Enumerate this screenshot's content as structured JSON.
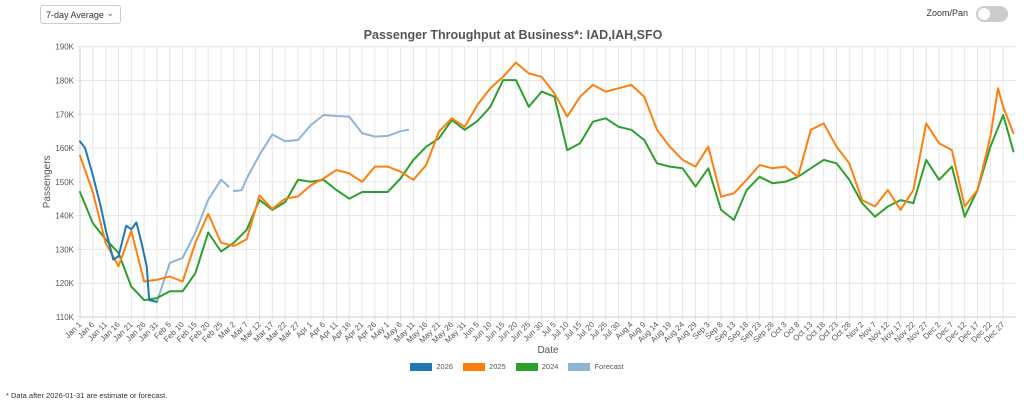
{
  "controls": {
    "average_select": "7-day Average",
    "zoom_pan_label": "Zoom/Pan",
    "zoom_pan_on": false
  },
  "footnote": "* Data after 2026-01-31 are estimate or forecast.",
  "chart_data": {
    "type": "line",
    "title": "Passenger Throughput at Business*: IAD,IAH,SFO",
    "xlabel": "Date",
    "ylabel": "Passengers",
    "ylim": [
      110000,
      190000
    ],
    "y_ticks": [
      "110K",
      "120K",
      "130K",
      "140K",
      "150K",
      "160K",
      "170K",
      "180K",
      "190K"
    ],
    "x_ticks": [
      "Jan 1",
      "Jan 6",
      "Jan 11",
      "Jan 16",
      "Jan 21",
      "Jan 26",
      "Jan 31",
      "Feb 5",
      "Feb 10",
      "Feb 15",
      "Feb 20",
      "Feb 25",
      "Mar 2",
      "Mar 7",
      "Mar 12",
      "Mar 17",
      "Mar 22",
      "Mar 27",
      "Apr 1",
      "Apr 6",
      "Apr 11",
      "Apr 16",
      "Apr 21",
      "Apr 26",
      "May 1",
      "May 6",
      "May 11",
      "May 16",
      "May 21",
      "May 26",
      "May 31",
      "Jun 5",
      "Jun 10",
      "Jun 15",
      "Jun 20",
      "Jun 25",
      "Jun 30",
      "Jul 5",
      "Jul 10",
      "Jul 15",
      "Jul 20",
      "Jul 25",
      "Jul 30",
      "Aug 4",
      "Aug 9",
      "Aug 14",
      "Aug 19",
      "Aug 24",
      "Aug 29",
      "Sep 3",
      "Sep 8",
      "Sep 13",
      "Sep 18",
      "Sep 23",
      "Sep 28",
      "Oct 3",
      "Oct 8",
      "Oct 13",
      "Oct 18",
      "Oct 23",
      "Oct 28",
      "Nov 2",
      "Nov 7",
      "Nov 12",
      "Nov 17",
      "Nov 22",
      "Nov 27",
      "Dec 2",
      "Dec 7",
      "Dec 12",
      "Dec 17",
      "Dec 22",
      "Dec 27"
    ],
    "grid": true,
    "legend_position": "bottom",
    "series": [
      {
        "name": "2026",
        "color": "#1f77b4",
        "points": [
          [
            "Jan 1",
            162000
          ],
          [
            "Jan 3",
            160000
          ],
          [
            "Jan 6",
            152000
          ],
          [
            "Jan 9",
            143000
          ],
          [
            "Jan 11",
            136000
          ],
          [
            "Jan 14",
            127000
          ],
          [
            "Jan 16",
            128000
          ],
          [
            "Jan 19",
            137000
          ],
          [
            "Jan 21",
            136000
          ],
          [
            "Jan 23",
            138000
          ],
          [
            "Jan 25",
            132000
          ],
          [
            "Jan 27",
            125000
          ],
          [
            "Jan 28",
            115000
          ],
          [
            "Jan 31",
            114500
          ]
        ]
      },
      {
        "name": "2025",
        "color": "#ff7f0e",
        "points": [
          [
            "Jan 1",
            157700
          ],
          [
            "Jan 6",
            147000
          ],
          [
            "Jan 11",
            132000
          ],
          [
            "Jan 16",
            125000
          ],
          [
            "Jan 21",
            135500
          ],
          [
            "Jan 26",
            120500
          ],
          [
            "Jan 31",
            121000
          ],
          [
            "Feb 5",
            122000
          ],
          [
            "Feb 10",
            120500
          ],
          [
            "Feb 15",
            132000
          ],
          [
            "Feb 20",
            140500
          ],
          [
            "Feb 25",
            132000
          ],
          [
            "Mar 2",
            131000
          ],
          [
            "Mar 7",
            133000
          ],
          [
            "Mar 12",
            146000
          ],
          [
            "Mar 17",
            142000
          ],
          [
            "Mar 22",
            145000
          ],
          [
            "Mar 27",
            145700
          ],
          [
            "Apr 1",
            149000
          ],
          [
            "Apr 6",
            151000
          ],
          [
            "Apr 11",
            153500
          ],
          [
            "Apr 16",
            152500
          ],
          [
            "Apr 21",
            150000
          ],
          [
            "Apr 26",
            154500
          ],
          [
            "May 1",
            154500
          ],
          [
            "May 6",
            153000
          ],
          [
            "May 11",
            150600
          ],
          [
            "May 16",
            155000
          ],
          [
            "May 21",
            164900
          ],
          [
            "May 26",
            168800
          ],
          [
            "May 31",
            166300
          ],
          [
            "Jun 5",
            172800
          ],
          [
            "Jun 10",
            177700
          ],
          [
            "Jun 15",
            181100
          ],
          [
            "Jun 20",
            185300
          ],
          [
            "Jun 25",
            182100
          ],
          [
            "Jun 30",
            181100
          ],
          [
            "Jul 5",
            176200
          ],
          [
            "Jul 10",
            169300
          ],
          [
            "Jul 15",
            175200
          ],
          [
            "Jul 20",
            178700
          ],
          [
            "Jul 25",
            176700
          ],
          [
            "Jul 30",
            177700
          ],
          [
            "Aug 4",
            178700
          ],
          [
            "Aug 9",
            175200
          ],
          [
            "Aug 14",
            165400
          ],
          [
            "Aug 19",
            160400
          ],
          [
            "Aug 24",
            156500
          ],
          [
            "Aug 29",
            154500
          ],
          [
            "Sep 3",
            160400
          ],
          [
            "Sep 8",
            145600
          ],
          [
            "Sep 13",
            146600
          ],
          [
            "Sep 18",
            150600
          ],
          [
            "Sep 23",
            155000
          ],
          [
            "Sep 28",
            154000
          ],
          [
            "Oct 3",
            154500
          ],
          [
            "Oct 8",
            151500
          ],
          [
            "Oct 13",
            165400
          ],
          [
            "Oct 18",
            167300
          ],
          [
            "Oct 23",
            160400
          ],
          [
            "Oct 28",
            155500
          ],
          [
            "Nov 2",
            144600
          ],
          [
            "Nov 7",
            142700
          ],
          [
            "Nov 12",
            147600
          ],
          [
            "Nov 17",
            141700
          ],
          [
            "Nov 22",
            147600
          ],
          [
            "Nov 27",
            167300
          ],
          [
            "Dec 2",
            161400
          ],
          [
            "Dec 7",
            159400
          ],
          [
            "Dec 12",
            142700
          ],
          [
            "Dec 17",
            147600
          ],
          [
            "Dec 22",
            163400
          ],
          [
            "Dec 25",
            177700
          ],
          [
            "Dec 27",
            172200
          ],
          [
            "Dec 31",
            164400
          ]
        ]
      },
      {
        "name": "2024",
        "color": "#2ca02c",
        "points": [
          [
            "Jan 1",
            147000
          ],
          [
            "Jan 6",
            137800
          ],
          [
            "Jan 11",
            133000
          ],
          [
            "Jan 16",
            129000
          ],
          [
            "Jan 21",
            119000
          ],
          [
            "Jan 26",
            115000
          ],
          [
            "Jan 31",
            115600
          ],
          [
            "Feb 5",
            117600
          ],
          [
            "Feb 10",
            117600
          ],
          [
            "Feb 15",
            123000
          ],
          [
            "Feb 20",
            135000
          ],
          [
            "Feb 25",
            129400
          ],
          [
            "Mar 2",
            132000
          ],
          [
            "Mar 7",
            135800
          ],
          [
            "Mar 12",
            144700
          ],
          [
            "Mar 17",
            141700
          ],
          [
            "Mar 22",
            144000
          ],
          [
            "Mar 27",
            150600
          ],
          [
            "Apr 1",
            150000
          ],
          [
            "Apr 6",
            150600
          ],
          [
            "Apr 11",
            147600
          ],
          [
            "Apr 16",
            145000
          ],
          [
            "Apr 21",
            147000
          ],
          [
            "Apr 26",
            147000
          ],
          [
            "May 1",
            147000
          ],
          [
            "May 6",
            151000
          ],
          [
            "May 11",
            156500
          ],
          [
            "May 16",
            160400
          ],
          [
            "May 21",
            162900
          ],
          [
            "May 26",
            168300
          ],
          [
            "May 31",
            165400
          ],
          [
            "Jun 5",
            168000
          ],
          [
            "Jun 10",
            172200
          ],
          [
            "Jun 15",
            180100
          ],
          [
            "Jun 20",
            180100
          ],
          [
            "Jun 25",
            172200
          ],
          [
            "Jun 30",
            176700
          ],
          [
            "Jul 5",
            175200
          ],
          [
            "Jul 10",
            159400
          ],
          [
            "Jul 15",
            161400
          ],
          [
            "Jul 20",
            167800
          ],
          [
            "Jul 25",
            168800
          ],
          [
            "Jul 30",
            166300
          ],
          [
            "Aug 4",
            165400
          ],
          [
            "Aug 9",
            162400
          ],
          [
            "Aug 14",
            155500
          ],
          [
            "Aug 19",
            154500
          ],
          [
            "Aug 24",
            154000
          ],
          [
            "Aug 29",
            148600
          ],
          [
            "Sep 3",
            154000
          ],
          [
            "Sep 8",
            141700
          ],
          [
            "Sep 13",
            138700
          ],
          [
            "Sep 18",
            147600
          ],
          [
            "Sep 23",
            151500
          ],
          [
            "Sep 28",
            149600
          ],
          [
            "Oct 3",
            150000
          ],
          [
            "Oct 8",
            151500
          ],
          [
            "Oct 13",
            154000
          ],
          [
            "Oct 18",
            156500
          ],
          [
            "Oct 23",
            155500
          ],
          [
            "Oct 28",
            150600
          ],
          [
            "Nov 2",
            143700
          ],
          [
            "Nov 7",
            139700
          ],
          [
            "Nov 12",
            142700
          ],
          [
            "Nov 17",
            144600
          ],
          [
            "Nov 22",
            143700
          ],
          [
            "Nov 27",
            156500
          ],
          [
            "Dec 2",
            150600
          ],
          [
            "Dec 7",
            154500
          ],
          [
            "Dec 12",
            139700
          ],
          [
            "Dec 17",
            147600
          ],
          [
            "Dec 22",
            160400
          ],
          [
            "Dec 27",
            169800
          ],
          [
            "Dec 31",
            159000
          ]
        ]
      },
      {
        "name": "Forecast",
        "color": "#8fb4d6",
        "points": [
          [
            "Jan 31",
            114500
          ],
          [
            "Feb 5",
            126000
          ],
          [
            "Feb 10",
            127500
          ],
          [
            "Feb 15",
            135000
          ],
          [
            "Feb 20",
            144700
          ],
          [
            "Feb 25",
            150600
          ],
          [
            "Feb 28",
            148600
          ],
          null,
          [
            "Mar 2",
            147300
          ],
          [
            "Mar 5",
            147500
          ],
          [
            "Mar 7",
            151000
          ],
          [
            "Mar 12",
            158000
          ],
          [
            "Mar 17",
            164000
          ],
          [
            "Mar 22",
            162000
          ],
          [
            "Mar 27",
            162400
          ],
          [
            "Apr 1",
            166800
          ],
          [
            "Apr 6",
            169800
          ],
          [
            "Apr 11",
            169500
          ],
          [
            "Apr 16",
            169300
          ],
          [
            "Apr 21",
            164400
          ],
          [
            "Apr 26",
            163400
          ],
          [
            "May 1",
            163600
          ],
          [
            "May 6",
            165000
          ],
          [
            "May 9",
            165400
          ]
        ]
      }
    ]
  }
}
